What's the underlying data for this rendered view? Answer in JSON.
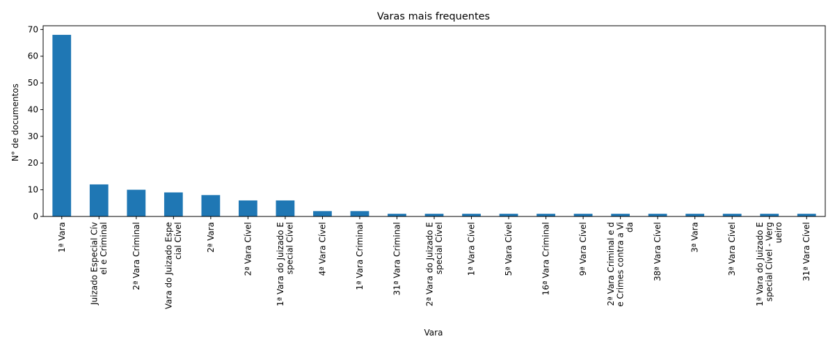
{
  "chart_data": {
    "type": "bar",
    "title": "Varas mais frequentes",
    "xlabel": "Vara",
    "ylabel": "N° de documentos",
    "ylim": [
      0,
      71.4
    ],
    "yticks": [
      0,
      10,
      20,
      30,
      40,
      50,
      60,
      70
    ],
    "grid": false,
    "legend": "none",
    "bar_color": "#1f77b4",
    "categories": [
      [
        "1ª Vara"
      ],
      [
        "Juizado Especial Cív",
        "el e Criminal"
      ],
      [
        "2ª Vara Criminal"
      ],
      [
        "Vara do Juizado Espe",
        "cial Cível"
      ],
      [
        "2ª Vara"
      ],
      [
        "2ª Vara Cível"
      ],
      [
        "1ª Vara do Juizado E",
        "special Cível"
      ],
      [
        "4ª Vara Cível"
      ],
      [
        "1ª Vara Criminal"
      ],
      [
        "31ª Vara Criminal"
      ],
      [
        "2ª Vara do Juizado E",
        "special Cível"
      ],
      [
        "1ª Vara Cível"
      ],
      [
        "5ª Vara Cível"
      ],
      [
        "16ª Vara Criminal"
      ],
      [
        "9ª Vara Cível"
      ],
      [
        "2ª Vara Criminal e d",
        "e Crimes contra a Vi",
        "da"
      ],
      [
        "38ª Vara Cível"
      ],
      [
        "3ª Vara"
      ],
      [
        "3ª Vara Cível"
      ],
      [
        "1ª Vara do Juizado E",
        "special Cível - Verg",
        "ueiro"
      ],
      [
        "31ª Vara Cível"
      ]
    ],
    "values": [
      68,
      12,
      10,
      9,
      8,
      6,
      6,
      2,
      2,
      1,
      1,
      1,
      1,
      1,
      1,
      1,
      1,
      1,
      1,
      1,
      1
    ]
  }
}
